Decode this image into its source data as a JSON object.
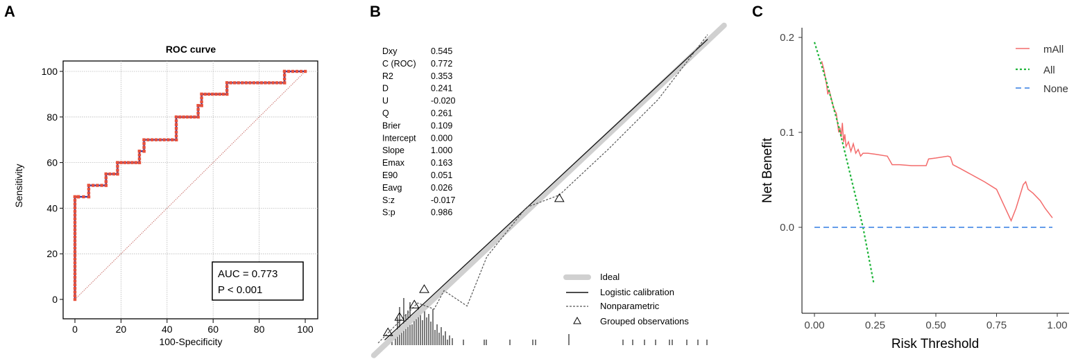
{
  "panels": {
    "a": {
      "letter": "A"
    },
    "b": {
      "letter": "B"
    },
    "c": {
      "letter": "C"
    }
  },
  "chart_data": [
    {
      "panel": "A",
      "type": "line",
      "title": "ROC curve",
      "xlabel": "100-Specificity",
      "ylabel": "Sensitivity",
      "xlim": [
        0,
        100
      ],
      "ylim": [
        0,
        100
      ],
      "xticks": [
        0,
        20,
        40,
        60,
        80,
        100
      ],
      "yticks": [
        0,
        20,
        40,
        60,
        80,
        100
      ],
      "grid": true,
      "series": [
        {
          "values_x": [
            0,
            0,
            1.5,
            1.5,
            6,
            6,
            13.5,
            13.5,
            18.5,
            18.5,
            28,
            28,
            30,
            30,
            44,
            44,
            53.5,
            53.5,
            55,
            55,
            66,
            66,
            91,
            91,
            100
          ],
          "values_y": [
            0,
            45,
            45,
            45,
            45,
            50,
            50,
            55,
            55,
            60,
            60,
            65,
            65,
            70,
            70,
            80,
            80,
            85,
            85,
            90,
            90,
            95,
            95,
            100,
            100
          ]
        },
        {
          "values_x": [
            0,
            100
          ],
          "values_y": [
            0,
            100
          ]
        }
      ],
      "annotations": [
        "AUC = 0.773",
        "P < 0.001"
      ],
      "colors": {
        "curve": "#1f2fa8",
        "markers": "#e8503a",
        "diagonal": "#c9706a",
        "grid": "#b8b8b8"
      }
    },
    {
      "panel": "B",
      "type": "line",
      "stats": [
        {
          "name": "Dxy",
          "value": "0.545"
        },
        {
          "name": "C (ROC)",
          "value": "0.772"
        },
        {
          "name": "R2",
          "value": "0.353"
        },
        {
          "name": "D",
          "value": "0.241"
        },
        {
          "name": "U",
          "value": "-0.020"
        },
        {
          "name": "Q",
          "value": "0.261"
        },
        {
          "name": "Brier",
          "value": "0.109"
        },
        {
          "name": "Intercept",
          "value": "0.000"
        },
        {
          "name": "Slope",
          "value": "1.000"
        },
        {
          "name": "Emax",
          "value": "0.163"
        },
        {
          "name": "E90",
          "value": "0.051"
        },
        {
          "name": "Eavg",
          "value": "0.026"
        },
        {
          "name": "S:z",
          "value": "-0.017"
        },
        {
          "name": "S:p",
          "value": "0.986"
        }
      ],
      "legend": [
        "Ideal",
        "Logistic calibration",
        "Nonparametric",
        "Grouped observations"
      ],
      "legend_position": "bottom-right",
      "grouped_observations": [
        {
          "x": 0.03,
          "y": 0.035
        },
        {
          "x": 0.065,
          "y": 0.085
        },
        {
          "x": 0.11,
          "y": 0.125
        },
        {
          "x": 0.14,
          "y": 0.175
        },
        {
          "x": 0.55,
          "y": 0.47
        }
      ],
      "nonparametric": {
        "x": [
          0.0,
          0.12,
          0.17,
          0.2,
          0.27,
          0.33,
          0.45,
          0.55,
          0.7,
          0.85,
          1.0
        ],
        "y": [
          0.0,
          0.13,
          0.11,
          0.17,
          0.12,
          0.28,
          0.44,
          0.48,
          0.63,
          0.79,
          1.0
        ]
      },
      "colors": {
        "ideal": "#d0d0d0",
        "logistic": "#111111",
        "nonparametric": "#555555"
      }
    },
    {
      "panel": "C",
      "type": "line",
      "xlabel": "Risk Threshold",
      "ylabel": "Net Benefit",
      "xlim": [
        -0.05,
        1.05
      ],
      "ylim": [
        -0.09,
        0.215
      ],
      "xticks": [
        "0.00",
        "0.25",
        "0.50",
        "0.75",
        "1.00"
      ],
      "yticks": [
        "0.0",
        "0.1",
        "0.2"
      ],
      "legend_position": "top-right",
      "series": [
        {
          "name": "mAll",
          "x": [
            0.03,
            0.04,
            0.05,
            0.055,
            0.06,
            0.07,
            0.08,
            0.09,
            0.1,
            0.105,
            0.11,
            0.115,
            0.12,
            0.125,
            0.13,
            0.14,
            0.15,
            0.16,
            0.17,
            0.18,
            0.19,
            0.2,
            0.22,
            0.25,
            0.3,
            0.32,
            0.35,
            0.4,
            0.46,
            0.47,
            0.5,
            0.55,
            0.56,
            0.57,
            0.6,
            0.65,
            0.7,
            0.75,
            0.81,
            0.83,
            0.86,
            0.87,
            0.88,
            0.9,
            0.93,
            0.95,
            0.98
          ],
          "y": [
            0.175,
            0.165,
            0.15,
            0.14,
            0.145,
            0.135,
            0.125,
            0.12,
            0.1,
            0.105,
            0.095,
            0.11,
            0.09,
            0.098,
            0.085,
            0.09,
            0.08,
            0.088,
            0.078,
            0.082,
            0.075,
            0.078,
            0.078,
            0.077,
            0.075,
            0.066,
            0.066,
            0.065,
            0.065,
            0.072,
            0.073,
            0.075,
            0.074,
            0.066,
            0.062,
            0.055,
            0.048,
            0.04,
            0.007,
            0.02,
            0.045,
            0.048,
            0.04,
            0.036,
            0.028,
            0.02,
            0.01
          ]
        },
        {
          "name": "All",
          "x": [
            0.0,
            0.05,
            0.1,
            0.15,
            0.2,
            0.245
          ],
          "y": [
            0.195,
            0.153,
            0.106,
            0.053,
            0.0,
            -0.06
          ]
        },
        {
          "name": "None",
          "x": [
            0.0,
            0.98
          ],
          "y": [
            0.0,
            0.0
          ]
        }
      ],
      "colors": {
        "mAll": "#f36b6b",
        "All": "#1fb53a",
        "None": "#4f8fe6"
      }
    }
  ]
}
